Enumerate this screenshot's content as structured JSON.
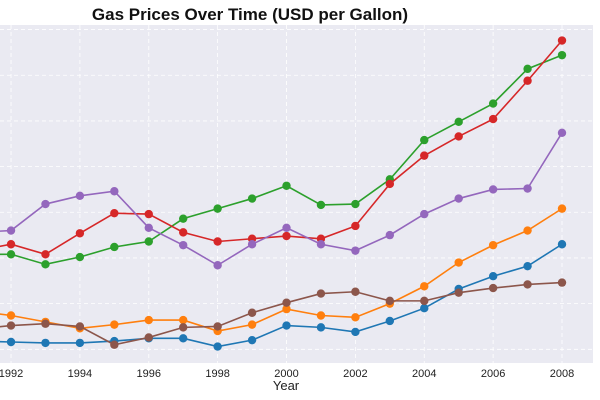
{
  "chart_data": {
    "type": "line",
    "title": "Gas Prices Over Time (USD per Gallon)",
    "xlabel": "Year",
    "ylabel": "",
    "xlim": [
      1991.68,
      2008.9
    ],
    "ylim": [
      0.85,
      4.55
    ],
    "xticks": [
      1992,
      1994,
      1996,
      1998,
      2000,
      2002,
      2004,
      2006,
      2008
    ],
    "ygrid": [
      1.0,
      1.5,
      2.0,
      2.5,
      3.0,
      3.5,
      4.0,
      4.5
    ],
    "grid": true,
    "x": [
      1991,
      1992,
      1993,
      1994,
      1995,
      1996,
      1997,
      1998,
      1999,
      2000,
      2001,
      2002,
      2003,
      2004,
      2005,
      2006,
      2007,
      2008
    ],
    "series": [
      {
        "color": "#1f77b4",
        "values": [
          1.09,
          1.08,
          1.07,
          1.07,
          1.09,
          1.12,
          1.12,
          1.03,
          1.1,
          1.26,
          1.24,
          1.19,
          1.31,
          1.45,
          1.66,
          1.8,
          1.91,
          2.15
        ]
      },
      {
        "color": "#ff7f0e",
        "values": [
          1.42,
          1.37,
          1.3,
          1.23,
          1.27,
          1.32,
          1.32,
          1.2,
          1.27,
          1.44,
          1.37,
          1.35,
          1.5,
          1.69,
          1.95,
          2.14,
          2.3,
          2.54
        ]
      },
      {
        "color": "#2ca02c",
        "values": [
          2.04,
          2.04,
          1.93,
          2.01,
          2.12,
          2.18,
          2.43,
          2.54,
          2.65,
          2.79,
          2.58,
          2.59,
          2.86,
          3.29,
          3.49,
          3.69,
          4.07,
          4.22
        ]
      },
      {
        "color": "#d62728",
        "values": [
          2.08,
          2.15,
          2.04,
          2.27,
          2.49,
          2.48,
          2.28,
          2.18,
          2.21,
          2.24,
          2.21,
          2.35,
          2.81,
          3.12,
          3.33,
          3.52,
          3.94,
          4.38
        ]
      },
      {
        "color": "#9467bd",
        "values": [
          2.28,
          2.3,
          2.59,
          2.68,
          2.73,
          2.33,
          2.14,
          1.92,
          2.15,
          2.33,
          2.15,
          2.08,
          2.25,
          2.48,
          2.65,
          2.75,
          2.76,
          3.37
        ]
      },
      {
        "color": "#8c564b",
        "values": [
          1.22,
          1.26,
          1.28,
          1.25,
          1.05,
          1.13,
          1.24,
          1.25,
          1.4,
          1.51,
          1.61,
          1.63,
          1.53,
          1.53,
          1.62,
          1.67,
          1.71,
          1.73
        ]
      }
    ]
  }
}
